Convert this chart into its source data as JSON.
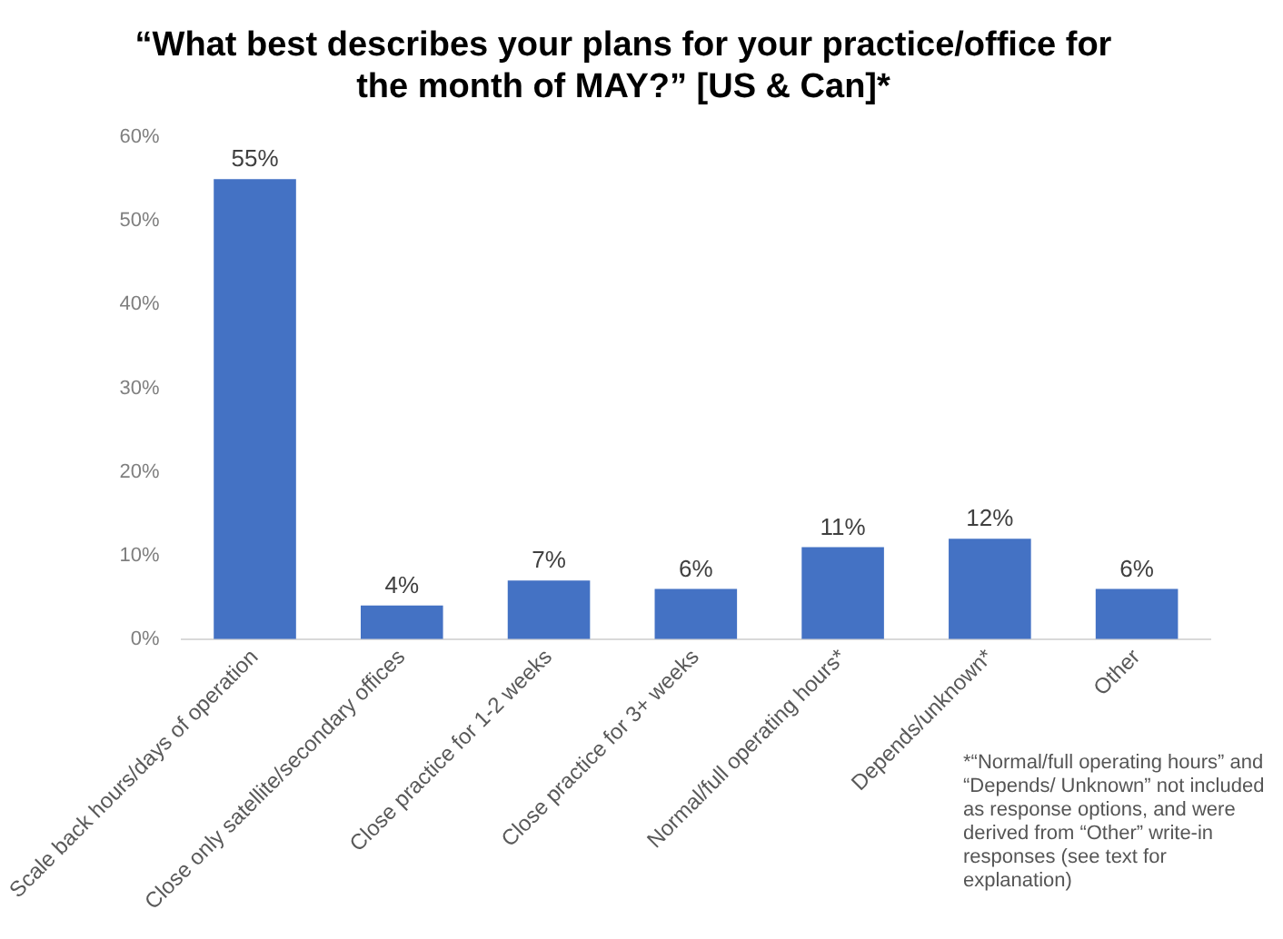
{
  "chart_data": {
    "type": "bar",
    "title": "“What best describes your plans for your practice/office for the month of MAY?” [US & Can]*",
    "categories": [
      "Scale back hours/days of operation",
      "Close only satellite/secondary offices",
      "Close practice for 1-2 weeks",
      "Close practice for 3+ weeks",
      "Normal/full operating hours*",
      "Depends/unknown*",
      "Other"
    ],
    "values": [
      55,
      4,
      7,
      6,
      11,
      12,
      6
    ],
    "value_labels": [
      "55%",
      "4%",
      "7%",
      "6%",
      "11%",
      "12%",
      "6%"
    ],
    "color": "#4472c4",
    "ylim": [
      0,
      60
    ],
    "yticks": [
      {
        "value": 0,
        "label": "0%"
      },
      {
        "value": 10,
        "label": "10%"
      },
      {
        "value": 20,
        "label": "20%"
      },
      {
        "value": 30,
        "label": "30%"
      },
      {
        "value": 40,
        "label": "40%"
      },
      {
        "value": 50,
        "label": "50%"
      },
      {
        "value": 60,
        "label": "60%"
      }
    ],
    "grid": false,
    "legend": false,
    "annotations": [
      "*“Normal/full operating hours” and “Depends/ Unknown” not included as response options, and were derived from “Other” write-in responses (see text for explanation)"
    ]
  }
}
